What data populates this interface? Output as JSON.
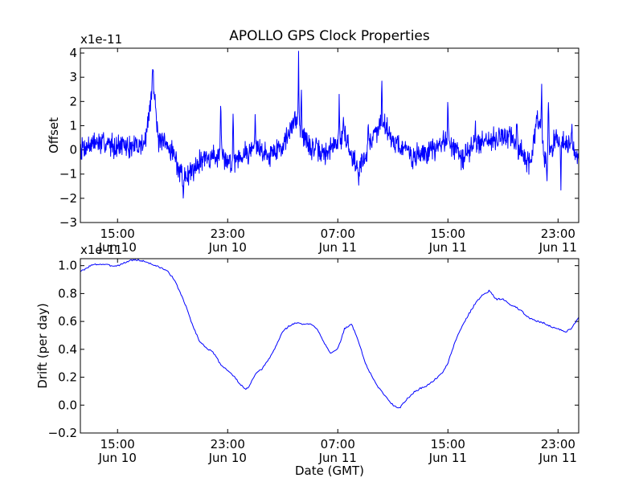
{
  "figure": {
    "title": "APOLLO GPS Clock Properties",
    "xlabel": "Date (GMT)"
  },
  "chart_data": [
    {
      "type": "line",
      "title": "APOLLO GPS Clock Properties",
      "xlabel": "",
      "ylabel": "Offset",
      "scale_label": "x1e-11",
      "color": "#0000ff",
      "xlim": [
        12.3,
        48.5
      ],
      "ylim": [
        -3,
        4.2
      ],
      "yticks": [
        -3,
        -2,
        -1,
        0,
        1,
        2,
        3,
        4
      ],
      "ytick_labels": [
        "−3",
        "−2",
        "−1",
        "0",
        "1",
        "2",
        "3",
        "4"
      ],
      "xticks": [
        15,
        23,
        31,
        39,
        47
      ],
      "xtick_labels": [
        [
          "15:00",
          "Jun 10"
        ],
        [
          "23:00",
          "Jun 10"
        ],
        [
          "07:00",
          "Jun 11"
        ],
        [
          "15:00",
          "Jun 11"
        ],
        [
          "23:00",
          "Jun 11"
        ]
      ],
      "noise_seed": 7,
      "base_amplitude": 0.35,
      "envelope": [
        [
          12.3,
          0.1
        ],
        [
          13.5,
          0.3
        ],
        [
          15.0,
          0.2
        ],
        [
          16.0,
          0.1
        ],
        [
          17.0,
          0.3
        ],
        [
          17.6,
          2.8
        ],
        [
          18.0,
          0.3
        ],
        [
          19.0,
          0.0
        ],
        [
          19.5,
          -0.9
        ],
        [
          20.0,
          -1.1
        ],
        [
          21.0,
          -0.4
        ],
        [
          22.5,
          -0.2
        ],
        [
          23.0,
          -0.5
        ],
        [
          24.0,
          -0.2
        ],
        [
          25.0,
          0.1
        ],
        [
          26.0,
          -0.2
        ],
        [
          27.0,
          0.2
        ],
        [
          28.0,
          1.3
        ],
        [
          28.8,
          0.2
        ],
        [
          30.0,
          -0.2
        ],
        [
          31.5,
          0.6
        ],
        [
          32.5,
          -0.9
        ],
        [
          33.5,
          0.5
        ],
        [
          34.3,
          1.2
        ],
        [
          35.0,
          0.4
        ],
        [
          36.5,
          -0.3
        ],
        [
          38.0,
          0.0
        ],
        [
          39.0,
          0.5
        ],
        [
          40.0,
          -0.4
        ],
        [
          41.0,
          0.3
        ],
        [
          43.5,
          0.6
        ],
        [
          44.0,
          0.2
        ],
        [
          45.0,
          -0.6
        ],
        [
          45.5,
          1.5
        ],
        [
          46.0,
          -0.4
        ],
        [
          47.0,
          0.6
        ],
        [
          48.5,
          -0.3
        ]
      ],
      "spikes": [
        [
          17.55,
          3.55
        ],
        [
          17.75,
          2.2
        ],
        [
          19.8,
          -2.2
        ],
        [
          22.5,
          1.8
        ],
        [
          23.4,
          1.5
        ],
        [
          25.0,
          1.7
        ],
        [
          27.9,
          1.4
        ],
        [
          28.15,
          4.1
        ],
        [
          28.35,
          2.6
        ],
        [
          31.1,
          2.0
        ],
        [
          31.4,
          1.6
        ],
        [
          33.2,
          1.1
        ],
        [
          34.2,
          3.05
        ],
        [
          39.0,
          2.0
        ],
        [
          41.0,
          0.9
        ],
        [
          44.0,
          1.0
        ],
        [
          45.8,
          2.7
        ],
        [
          46.3,
          2.55
        ],
        [
          46.2,
          -1.5
        ],
        [
          47.2,
          -1.6
        ],
        [
          48.0,
          1.2
        ]
      ]
    },
    {
      "type": "line",
      "xlabel": "Date (GMT)",
      "ylabel": "Drift (per day)",
      "scale_label": "x1e-11",
      "color": "#0000ff",
      "xlim": [
        12.3,
        48.5
      ],
      "ylim": [
        -0.2,
        1.05
      ],
      "yticks": [
        -0.2,
        0.0,
        0.2,
        0.4,
        0.6,
        0.8,
        1.0
      ],
      "ytick_labels": [
        "−0.2",
        "0.0",
        "0.2",
        "0.4",
        "0.6",
        "0.8",
        "1.0"
      ],
      "xticks": [
        15,
        23,
        31,
        39,
        47
      ],
      "xtick_labels": [
        [
          "15:00",
          "Jun 10"
        ],
        [
          "23:00",
          "Jun 10"
        ],
        [
          "07:00",
          "Jun 11"
        ],
        [
          "15:00",
          "Jun 11"
        ],
        [
          "23:00",
          "Jun 11"
        ]
      ],
      "noise_seed": 3,
      "noise_amplitude": 0.006,
      "x": [
        12.3,
        12.6,
        13.0,
        13.5,
        14.0,
        14.5,
        15.0,
        15.5,
        16.0,
        16.5,
        17.0,
        17.5,
        18.0,
        18.5,
        19.0,
        19.5,
        20.0,
        20.5,
        21.0,
        21.5,
        22.0,
        22.5,
        23.0,
        23.5,
        24.0,
        24.3,
        24.6,
        25.0,
        25.5,
        26.0,
        26.5,
        27.0,
        27.5,
        28.0,
        28.5,
        29.0,
        29.5,
        30.0,
        30.5,
        31.0,
        31.5,
        32.0,
        32.5,
        33.0,
        33.5,
        34.0,
        34.5,
        35.0,
        35.5,
        36.0,
        36.5,
        37.0,
        37.5,
        38.0,
        38.5,
        39.0,
        39.5,
        40.0,
        40.5,
        41.0,
        41.5,
        42.0,
        42.5,
        43.0,
        43.5,
        44.0,
        44.5,
        45.0,
        45.5,
        46.0,
        46.5,
        47.0,
        47.5,
        48.0,
        48.5
      ],
      "values": [
        0.96,
        0.97,
        1.0,
        1.01,
        1.01,
        1.0,
        1.0,
        1.02,
        1.04,
        1.04,
        1.03,
        1.01,
        0.99,
        0.97,
        0.92,
        0.82,
        0.7,
        0.56,
        0.45,
        0.41,
        0.37,
        0.29,
        0.25,
        0.2,
        0.14,
        0.11,
        0.14,
        0.22,
        0.26,
        0.33,
        0.42,
        0.53,
        0.57,
        0.59,
        0.58,
        0.58,
        0.55,
        0.45,
        0.37,
        0.4,
        0.55,
        0.58,
        0.46,
        0.3,
        0.2,
        0.12,
        0.06,
        0.0,
        -0.02,
        0.04,
        0.09,
        0.12,
        0.14,
        0.18,
        0.22,
        0.3,
        0.45,
        0.56,
        0.65,
        0.73,
        0.79,
        0.82,
        0.76,
        0.76,
        0.72,
        0.7,
        0.66,
        0.62,
        0.6,
        0.59,
        0.56,
        0.55,
        0.52,
        0.55,
        0.63
      ]
    }
  ]
}
